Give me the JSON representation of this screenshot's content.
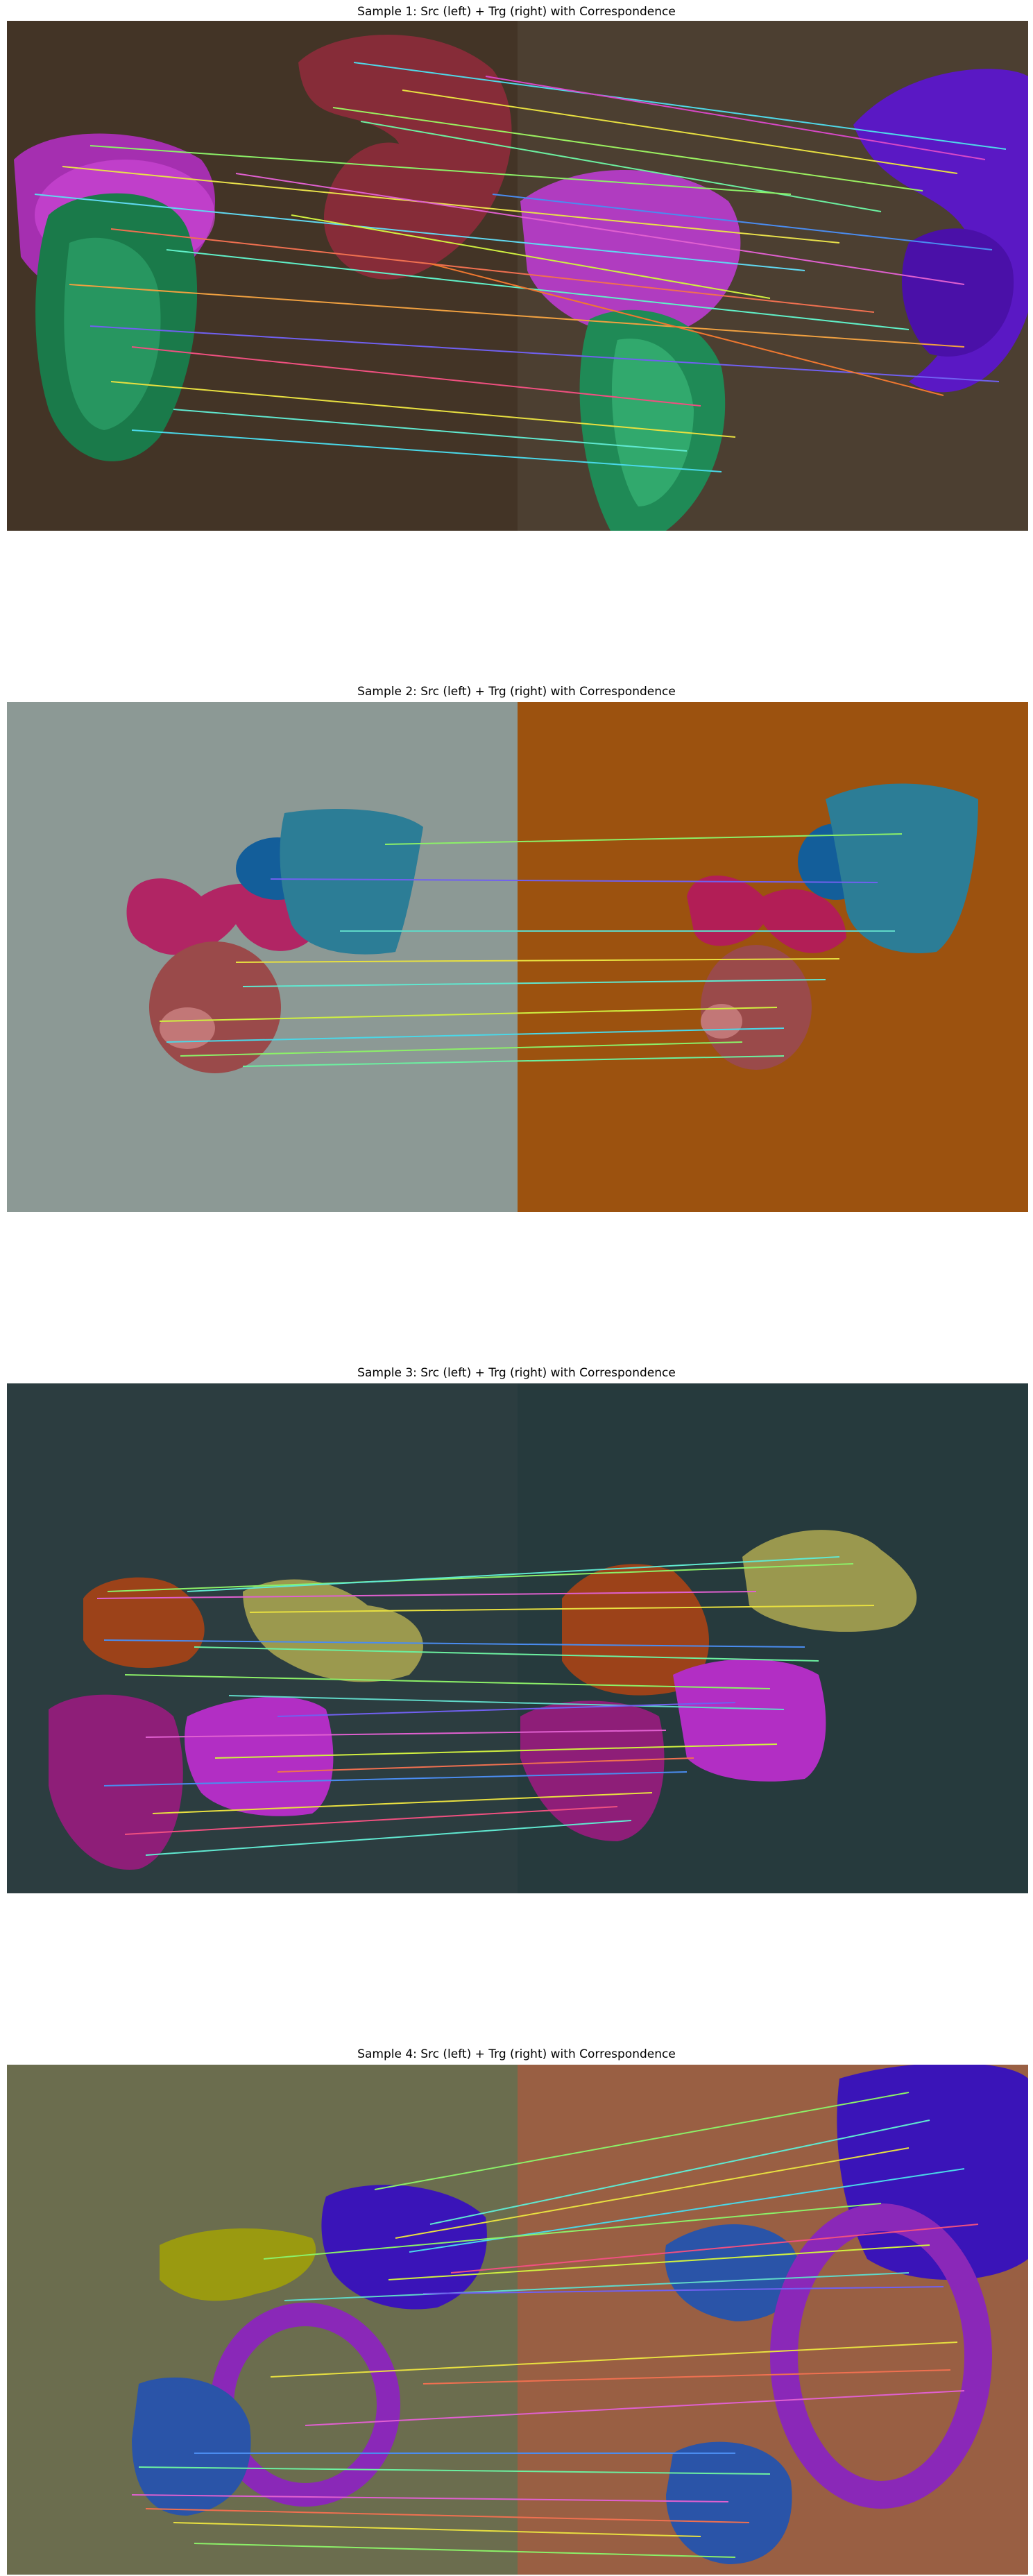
{
  "samples": [
    {
      "title": "Sample 1: Src (left) + Trg (right) with Correspondence",
      "colors": {
        "src_bg": "#433426",
        "trg_bg": "#4c3f31"
      }
    },
    {
      "title": "Sample 2: Src (left) + Trg (right) with Correspondence",
      "colors": {
        "src_bg": "#8c9995",
        "trg_bg": "#9c520f"
      }
    },
    {
      "title": "Sample 3: Src (left) + Trg (right) with Correspondence",
      "colors": {
        "src_bg": "#2c3d40",
        "trg_bg": "#263a3d"
      }
    },
    {
      "title": "Sample 4: Src (left) + Trg (right) with Correspondence",
      "colors": {
        "src_bg": "#6b6d4e",
        "trg_bg": "#995f43"
      }
    }
  ]
}
